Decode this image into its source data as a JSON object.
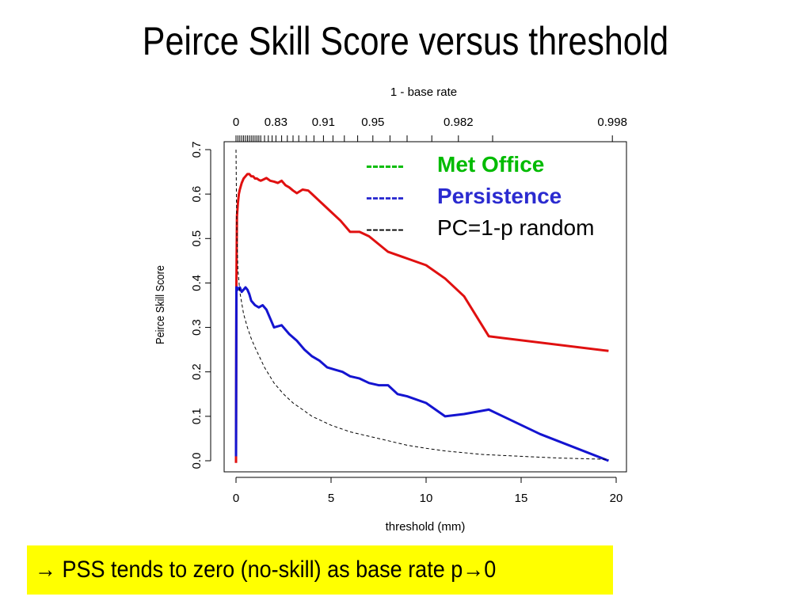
{
  "slide": {
    "title": "Peirce Skill Score versus threshold"
  },
  "callout": {
    "arrow": "→",
    "text_before": " PSS tends to zero (no-skill) as base rate p",
    "text_after": "0",
    "background": "#ffff00"
  },
  "chart_data": {
    "type": "line",
    "xlabel": "threshold (mm)",
    "ylabel": "Peirce Skill Score",
    "top_axis_label": "1 - base rate",
    "xlim": [
      0,
      20
    ],
    "ylim": [
      0,
      0.7
    ],
    "x_ticks": [
      0,
      5,
      10,
      15,
      20
    ],
    "y_ticks": [
      0.0,
      0.1,
      0.2,
      0.3,
      0.4,
      0.5,
      0.6,
      0.7
    ],
    "y_tick_labels": [
      "0.0",
      "0.1",
      "0.2",
      "0.3",
      "0.4",
      "0.5",
      "0.6",
      "0.7"
    ],
    "top_tick_labels": [
      {
        "label": "0",
        "x": 0
      },
      {
        "label": "0.83",
        "x": 2.1
      },
      {
        "label": "0.91",
        "x": 4.6
      },
      {
        "label": "0.95",
        "x": 7.2
      },
      {
        "label": "0.982",
        "x": 11.7
      },
      {
        "label": "0.998",
        "x": 19.8
      }
    ],
    "top_minor_ticks": [
      0,
      0.1,
      0.2,
      0.3,
      0.4,
      0.5,
      0.6,
      0.7,
      0.8,
      0.9,
      1.0,
      1.1,
      1.2,
      1.3,
      1.5,
      1.7,
      1.9,
      2.1,
      2.4,
      2.7,
      3.0,
      3.3,
      3.7,
      4.1,
      4.6,
      5.1,
      5.7,
      6.4,
      7.2,
      8.1,
      9.0,
      10.3,
      11.7,
      13.5,
      19.8
    ],
    "legend": {
      "position": "top-right",
      "entries": [
        {
          "marker": "------",
          "label": "Met Office",
          "color": "#00bb00",
          "bold": true
        },
        {
          "marker": "------",
          "label": "Persistence",
          "color": "#2b2bd0",
          "bold": true
        },
        {
          "marker": "------",
          "label": "PC=1-p random",
          "color": "#000000",
          "bold": false
        }
      ]
    },
    "series": [
      {
        "color": "#e01010",
        "style": "solid",
        "x": [
          0.0,
          0.02,
          0.05,
          0.1,
          0.15,
          0.2,
          0.3,
          0.4,
          0.5,
          0.6,
          0.7,
          0.8,
          0.9,
          1.0,
          1.1,
          1.2,
          1.3,
          1.4,
          1.6,
          1.8,
          2.0,
          2.2,
          2.4,
          2.6,
          2.8,
          3.0,
          3.2,
          3.5,
          3.8,
          4.0,
          4.5,
          5.0,
          5.5,
          6.0,
          6.5,
          7.0,
          8.0,
          9.0,
          10.0,
          11.0,
          12.0,
          13.3,
          19.6
        ],
        "y": [
          -0.005,
          0.4,
          0.55,
          0.58,
          0.6,
          0.61,
          0.625,
          0.635,
          0.64,
          0.645,
          0.645,
          0.64,
          0.64,
          0.635,
          0.635,
          0.632,
          0.63,
          0.632,
          0.636,
          0.63,
          0.628,
          0.625,
          0.63,
          0.62,
          0.615,
          0.608,
          0.602,
          0.61,
          0.608,
          0.6,
          0.58,
          0.56,
          0.54,
          0.515,
          0.515,
          0.505,
          0.47,
          0.455,
          0.44,
          0.41,
          0.37,
          0.28,
          0.247
        ]
      },
      {
        "color": "#1414d0",
        "style": "solid",
        "x": [
          0.0,
          0.02,
          0.05,
          0.1,
          0.2,
          0.3,
          0.4,
          0.5,
          0.6,
          0.7,
          0.8,
          1.0,
          1.2,
          1.4,
          1.6,
          1.8,
          2.0,
          2.4,
          2.8,
          3.2,
          3.6,
          4.0,
          4.4,
          4.8,
          5.2,
          5.6,
          6.0,
          6.5,
          7.0,
          7.5,
          8.0,
          8.5,
          9.0,
          10.0,
          11.0,
          12.0,
          13.3,
          16.0,
          19.6
        ],
        "y": [
          0.01,
          0.39,
          0.39,
          0.385,
          0.39,
          0.38,
          0.385,
          0.39,
          0.385,
          0.375,
          0.36,
          0.35,
          0.345,
          0.35,
          0.34,
          0.32,
          0.3,
          0.305,
          0.285,
          0.27,
          0.25,
          0.235,
          0.225,
          0.21,
          0.205,
          0.2,
          0.19,
          0.185,
          0.175,
          0.17,
          0.17,
          0.15,
          0.145,
          0.13,
          0.1,
          0.105,
          0.115,
          0.06,
          0.0
        ]
      },
      {
        "color": "#000000",
        "style": "dashed",
        "x": [
          0.0,
          0.02,
          0.05,
          0.1,
          0.2,
          0.4,
          0.6,
          0.8,
          1.0,
          1.5,
          2.0,
          2.5,
          3.0,
          3.5,
          4.0,
          5.0,
          6.0,
          7.0,
          8.0,
          9.0,
          10.0,
          11.0,
          12.0,
          13.0,
          14.0,
          15.0,
          16.0,
          17.0,
          18.0,
          19.6
        ],
        "y": [
          0.7,
          0.6,
          0.5,
          0.43,
          0.38,
          0.33,
          0.3,
          0.275,
          0.255,
          0.21,
          0.175,
          0.15,
          0.13,
          0.115,
          0.1,
          0.08,
          0.065,
          0.055,
          0.045,
          0.035,
          0.028,
          0.022,
          0.018,
          0.014,
          0.012,
          0.01,
          0.008,
          0.006,
          0.005,
          0.003
        ]
      }
    ]
  }
}
